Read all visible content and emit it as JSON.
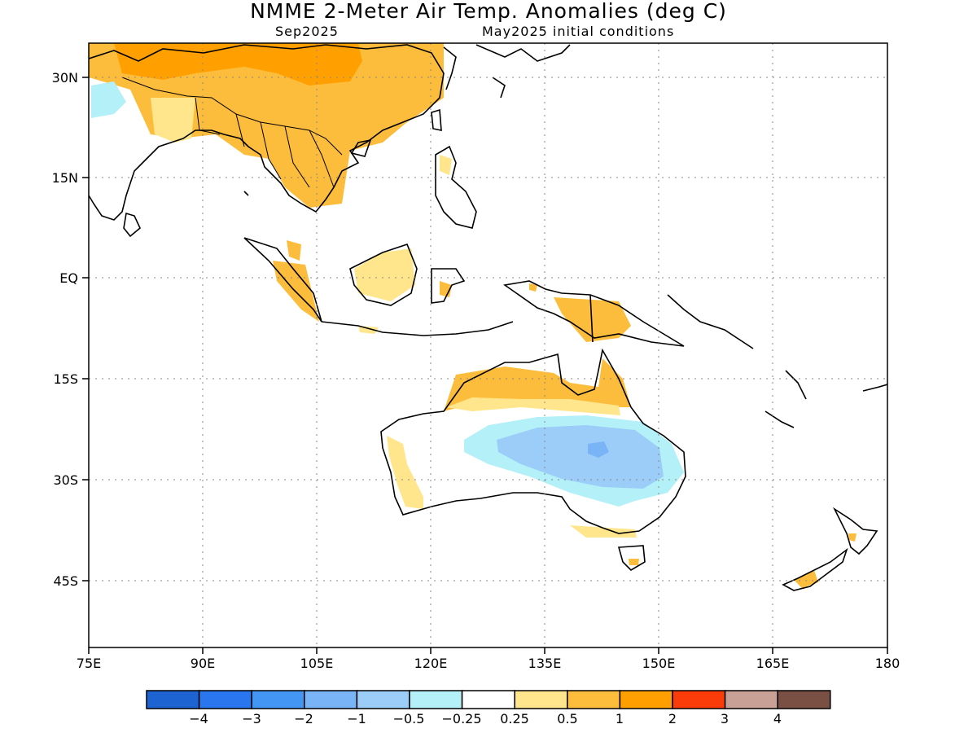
{
  "title": "NMME 2-Meter Air Temp. Anomalies (deg C)",
  "subtitle_left": "Sep2025",
  "subtitle_right": "May2025 initial conditions",
  "lat_labels": [
    "30N",
    "15N",
    "EQ",
    "15S",
    "30S",
    "45S"
  ],
  "lon_labels": [
    "75E",
    "90E",
    "105E",
    "120E",
    "135E",
    "150E",
    "165E",
    "180"
  ],
  "colorbar": {
    "colors": [
      "#1e63d2",
      "#2a76ee",
      "#4496f4",
      "#78b4f6",
      "#9ccdf8",
      "#b4f0f8",
      "#ffffff",
      "#ffe68c",
      "#fdbd3c",
      "#ffa000",
      "#fa3c0a",
      "#c8a096",
      "#7a5045"
    ],
    "labels": [
      "−4",
      "−3",
      "−2",
      "−1",
      "−0.5",
      "−0.25",
      "0.25",
      "0.5",
      "1",
      "2",
      "3",
      "4"
    ]
  },
  "legend_colors": {
    "warm_light": "#ffe68c",
    "warm": "#fdbd3c",
    "warm_strong": "#ffa000",
    "cool_light": "#b4f0f8",
    "cool": "#9ccdf8",
    "cool_mid": "#78b4f6",
    "cool_strong": "#4496f4"
  }
}
